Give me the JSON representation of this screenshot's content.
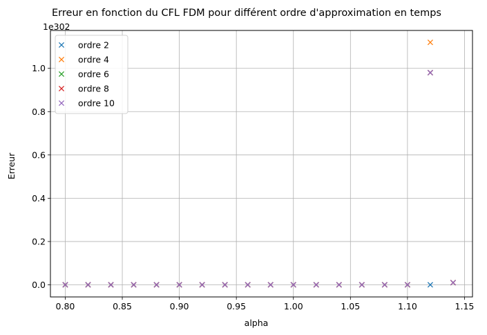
{
  "chart_data": {
    "type": "scatter",
    "title": "Erreur en fonction du CFL FDM pour différent ordre d'approximation en temps",
    "xlabel": "alpha",
    "ylabel": "Erreur",
    "offset_text": "1e302",
    "xlim": [
      0.787,
      1.157
    ],
    "ylim": [
      -0.056,
      1.175
    ],
    "x_ticks": [
      0.8,
      0.85,
      0.9,
      0.95,
      1.0,
      1.05,
      1.1,
      1.15
    ],
    "x_tick_labels": [
      "0.80",
      "0.85",
      "0.90",
      "0.95",
      "1.00",
      "1.05",
      "1.10",
      "1.15"
    ],
    "y_ticks": [
      0.0,
      0.2,
      0.4,
      0.6,
      0.8,
      1.0
    ],
    "y_tick_labels": [
      "0.0",
      "0.2",
      "0.4",
      "0.6",
      "0.8",
      "1.0"
    ],
    "grid": true,
    "legend_position": "top-left",
    "marker": "x",
    "series": [
      {
        "name": "ordre 2",
        "color": "#1f77b4",
        "x": [
          0.8,
          0.82,
          0.84,
          0.86,
          0.88,
          0.9,
          0.92,
          0.94,
          0.96,
          0.98,
          1.0,
          1.02,
          1.04,
          1.06,
          1.08,
          1.1,
          1.12
        ],
        "y": [
          0,
          0,
          0,
          0,
          0,
          0,
          0,
          0,
          0,
          0,
          0,
          0,
          0,
          0,
          0,
          0,
          0
        ]
      },
      {
        "name": "ordre 4",
        "color": "#ff7f0e",
        "x": [
          0.8,
          0.82,
          0.84,
          0.86,
          0.88,
          0.9,
          0.92,
          0.94,
          0.96,
          0.98,
          1.0,
          1.02,
          1.04,
          1.06,
          1.08,
          1.1,
          1.12,
          1.14
        ],
        "y": [
          0,
          0,
          0,
          0,
          0,
          0,
          0,
          0,
          0,
          0,
          0,
          0,
          0,
          0,
          0,
          0,
          1.12,
          0.01
        ]
      },
      {
        "name": "ordre 6",
        "color": "#2ca02c",
        "x": [
          0.8,
          0.82,
          0.84,
          0.86,
          0.88,
          0.9,
          0.92,
          0.94,
          0.96,
          0.98,
          1.0,
          1.02,
          1.04,
          1.06,
          1.08,
          1.1,
          1.12,
          1.14
        ],
        "y": [
          0,
          0,
          0,
          0,
          0,
          0,
          0,
          0,
          0,
          0,
          0,
          0,
          0,
          0,
          0,
          0,
          0.98,
          0.01
        ]
      },
      {
        "name": "ordre 8",
        "color": "#d62728",
        "x": [
          0.8,
          0.82,
          0.84,
          0.86,
          0.88,
          0.9,
          0.92,
          0.94,
          0.96,
          0.98,
          1.0,
          1.02,
          1.04,
          1.06,
          1.08,
          1.1,
          1.12,
          1.14
        ],
        "y": [
          0,
          0,
          0,
          0,
          0,
          0,
          0,
          0,
          0,
          0,
          0,
          0,
          0,
          0,
          0,
          0,
          0.98,
          0.01
        ]
      },
      {
        "name": "ordre 10",
        "color": "#9467bd",
        "x": [
          0.8,
          0.82,
          0.84,
          0.86,
          0.88,
          0.9,
          0.92,
          0.94,
          0.96,
          0.98,
          1.0,
          1.02,
          1.04,
          1.06,
          1.08,
          1.1,
          1.12,
          1.14
        ],
        "y": [
          0,
          0,
          0,
          0,
          0,
          0,
          0,
          0,
          0,
          0,
          0,
          0,
          0,
          0,
          0,
          0,
          0.98,
          0.01
        ]
      }
    ]
  }
}
